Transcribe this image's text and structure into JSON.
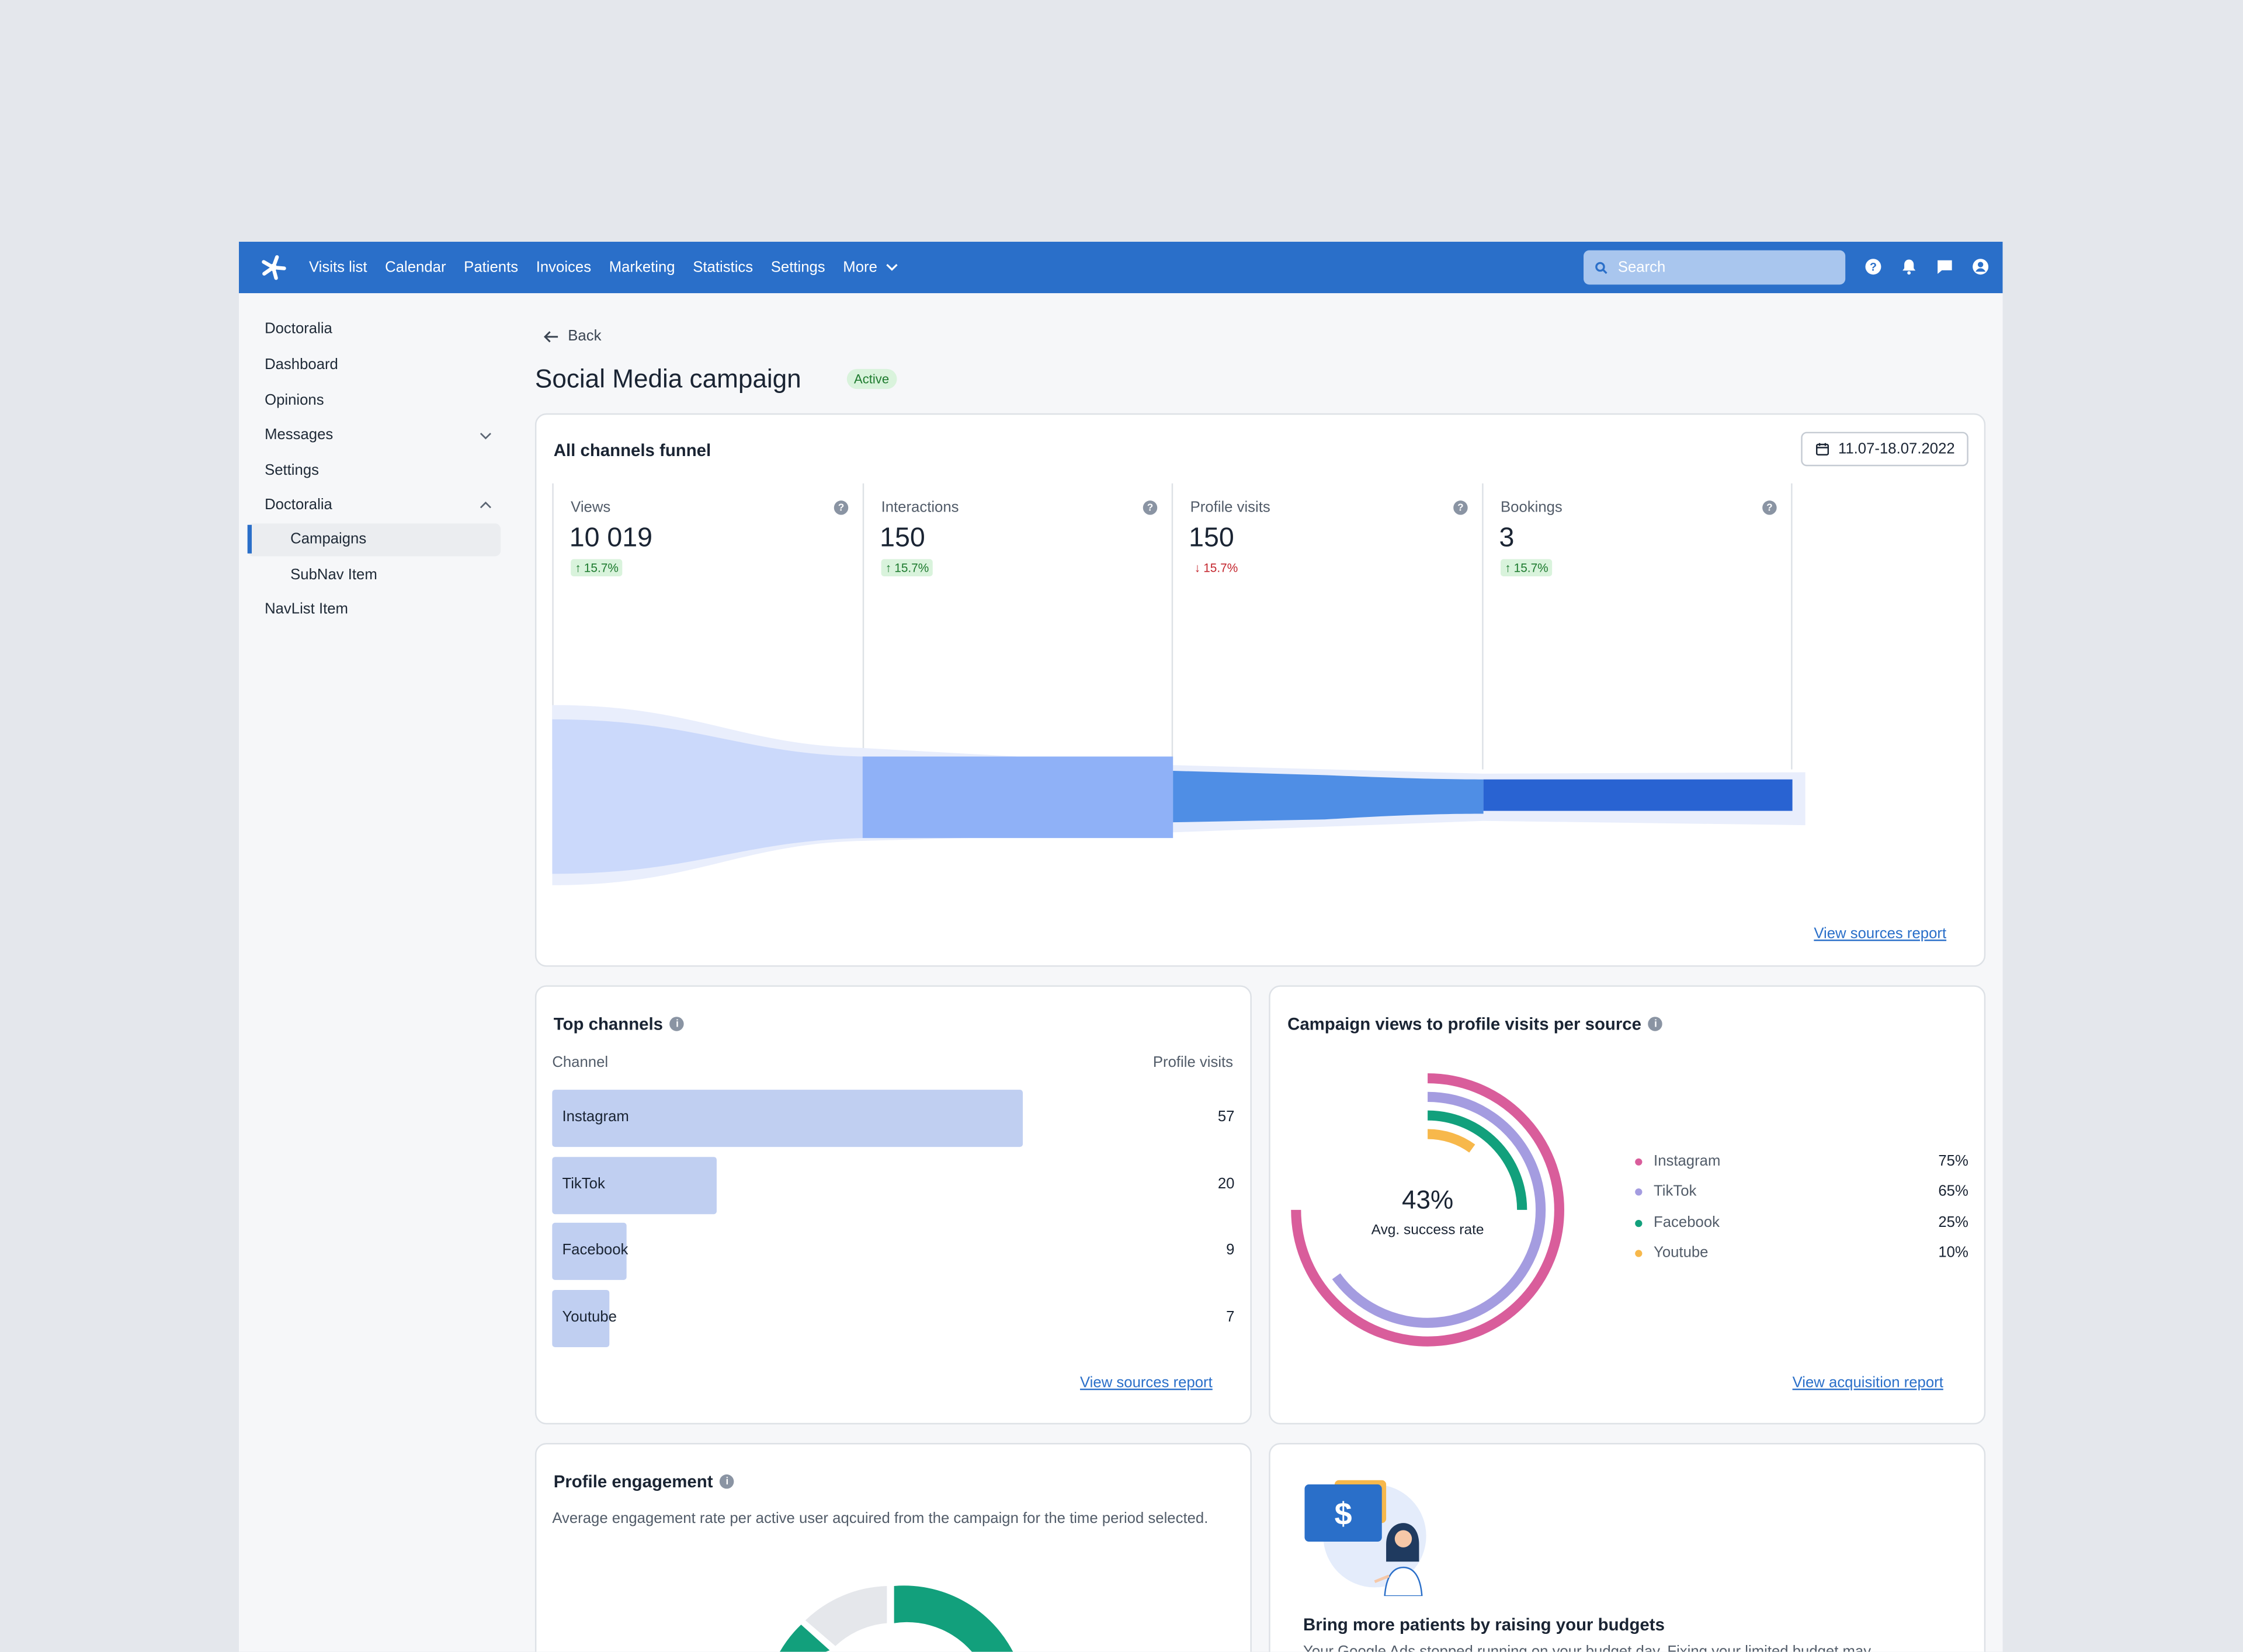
{
  "topbar": {
    "nav": [
      "Visits list",
      "Calendar",
      "Patients",
      "Invoices",
      "Marketing",
      "Statistics",
      "Settings"
    ],
    "more_label": "More",
    "search_placeholder": "Search"
  },
  "sidebar": {
    "items": [
      {
        "label": "Doctoralia"
      },
      {
        "label": "Dashboard"
      },
      {
        "label": "Opinions"
      },
      {
        "label": "Messages"
      },
      {
        "label": "Settings"
      },
      {
        "label": "Doctoralia"
      },
      {
        "label": "Campaigns"
      },
      {
        "label": "SubNav Item"
      },
      {
        "label": "NavList Item"
      }
    ]
  },
  "page": {
    "back_label": "Back",
    "title": "Social Media campaign",
    "status_badge": "Active"
  },
  "funnel_card": {
    "title": "All channels funnel",
    "date_range": "11.07-18.07.2022",
    "metrics": [
      {
        "label": "Views",
        "value": "10 019",
        "delta": "15.7%",
        "direction": "up"
      },
      {
        "label": "Interactions",
        "value": "150",
        "delta": "15.7%",
        "direction": "up"
      },
      {
        "label": "Profile visits",
        "value": "150",
        "delta": "15.7%",
        "direction": "down"
      },
      {
        "label": "Bookings",
        "value": "3",
        "delta": "15.7%",
        "direction": "up"
      }
    ],
    "link": "View sources report",
    "colors": [
      "#cbd9fb",
      "#8fb1f7",
      "#4f8ee5",
      "#2963d2"
    ]
  },
  "top_channels": {
    "title": "Top channels",
    "col_channel": "Channel",
    "col_visits": "Profile visits",
    "link": "View sources report"
  },
  "campaign_views": {
    "title": "Campaign views to profile visits per source",
    "center_value": "43%",
    "center_label": "Avg. success rate",
    "link": "View acquisition report"
  },
  "profile_engagement": {
    "title": "Profile engagement",
    "description": "Average engagement rate per active user aqcuired from the campaign for the time period selected."
  },
  "promo": {
    "title": "Bring more patients by raising your budgets",
    "text": "Your Google Ads stopped running on your budget day. Fixing your limited budget may",
    "icon_symbol": "$"
  },
  "chart_data": [
    {
      "type": "bar",
      "categories": [
        "Instagram",
        "TikTok",
        "Facebook",
        "Youtube"
      ],
      "values": [
        57,
        20,
        9,
        7
      ],
      "xlabel": "Channel",
      "ylabel": "Profile visits"
    },
    {
      "type": "pie",
      "categories": [
        "Instagram",
        "TikTok",
        "Facebook",
        "Youtube"
      ],
      "values": [
        75,
        65,
        25,
        10
      ],
      "labels": [
        "75%",
        "65%",
        "25%",
        "10%"
      ],
      "colors": [
        "#d95d9b",
        "#a49ce0",
        "#12a07c",
        "#f7b84b"
      ]
    }
  ]
}
